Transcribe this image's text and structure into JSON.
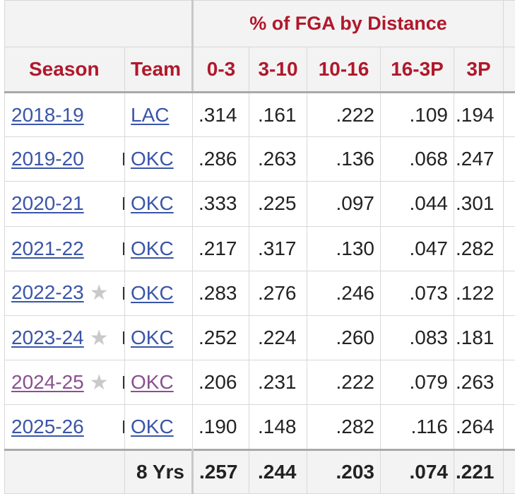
{
  "header": {
    "group_title": "% of FGA by Distance",
    "columns": {
      "season": "Season",
      "team": "Team",
      "d0_3": "0-3",
      "d3_10": "3-10",
      "d10_16": "10-16",
      "d16_3p": "16-3P",
      "three_p": "3P"
    }
  },
  "rows": [
    {
      "season": "2018-19",
      "star": false,
      "visited": false,
      "team": "LAC",
      "d0_3": ".314",
      "d3_10": ".161",
      "d10_16": ".222",
      "d16_3p": ".109",
      "three_p": ".194"
    },
    {
      "season": "2019-20",
      "star": false,
      "visited": false,
      "team": "OKC",
      "d0_3": ".286",
      "d3_10": ".263",
      "d10_16": ".136",
      "d16_3p": ".068",
      "three_p": ".247"
    },
    {
      "season": "2020-21",
      "star": false,
      "visited": false,
      "team": "OKC",
      "d0_3": ".333",
      "d3_10": ".225",
      "d10_16": ".097",
      "d16_3p": ".044",
      "three_p": ".301"
    },
    {
      "season": "2021-22",
      "star": false,
      "visited": false,
      "team": "OKC",
      "d0_3": ".217",
      "d3_10": ".317",
      "d10_16": ".130",
      "d16_3p": ".047",
      "three_p": ".282"
    },
    {
      "season": "2022-23",
      "star": true,
      "visited": false,
      "team": "OKC",
      "d0_3": ".283",
      "d3_10": ".276",
      "d10_16": ".246",
      "d16_3p": ".073",
      "three_p": ".122"
    },
    {
      "season": "2023-24",
      "star": true,
      "visited": false,
      "team": "OKC",
      "d0_3": ".252",
      "d3_10": ".224",
      "d10_16": ".260",
      "d16_3p": ".083",
      "three_p": ".181"
    },
    {
      "season": "2024-25",
      "star": true,
      "visited": true,
      "team": "OKC",
      "d0_3": ".206",
      "d3_10": ".231",
      "d10_16": ".222",
      "d16_3p": ".079",
      "three_p": ".263"
    },
    {
      "season": "2025-26",
      "star": false,
      "visited": false,
      "team": "OKC",
      "d0_3": ".190",
      "d3_10": ".148",
      "d10_16": ".282",
      "d16_3p": ".116",
      "three_p": ".264"
    }
  ],
  "totals": {
    "label": "8 Yrs",
    "d0_3": ".257",
    "d3_10": ".244",
    "d10_16": ".203",
    "d16_3p": ".074",
    "three_p": ".221"
  },
  "icons": {
    "star": "star-icon",
    "star_color": "#c9c9c9"
  },
  "colors": {
    "header_text": "#b0182b",
    "link": "#3a55a8",
    "visited_link": "#8a4f90"
  }
}
